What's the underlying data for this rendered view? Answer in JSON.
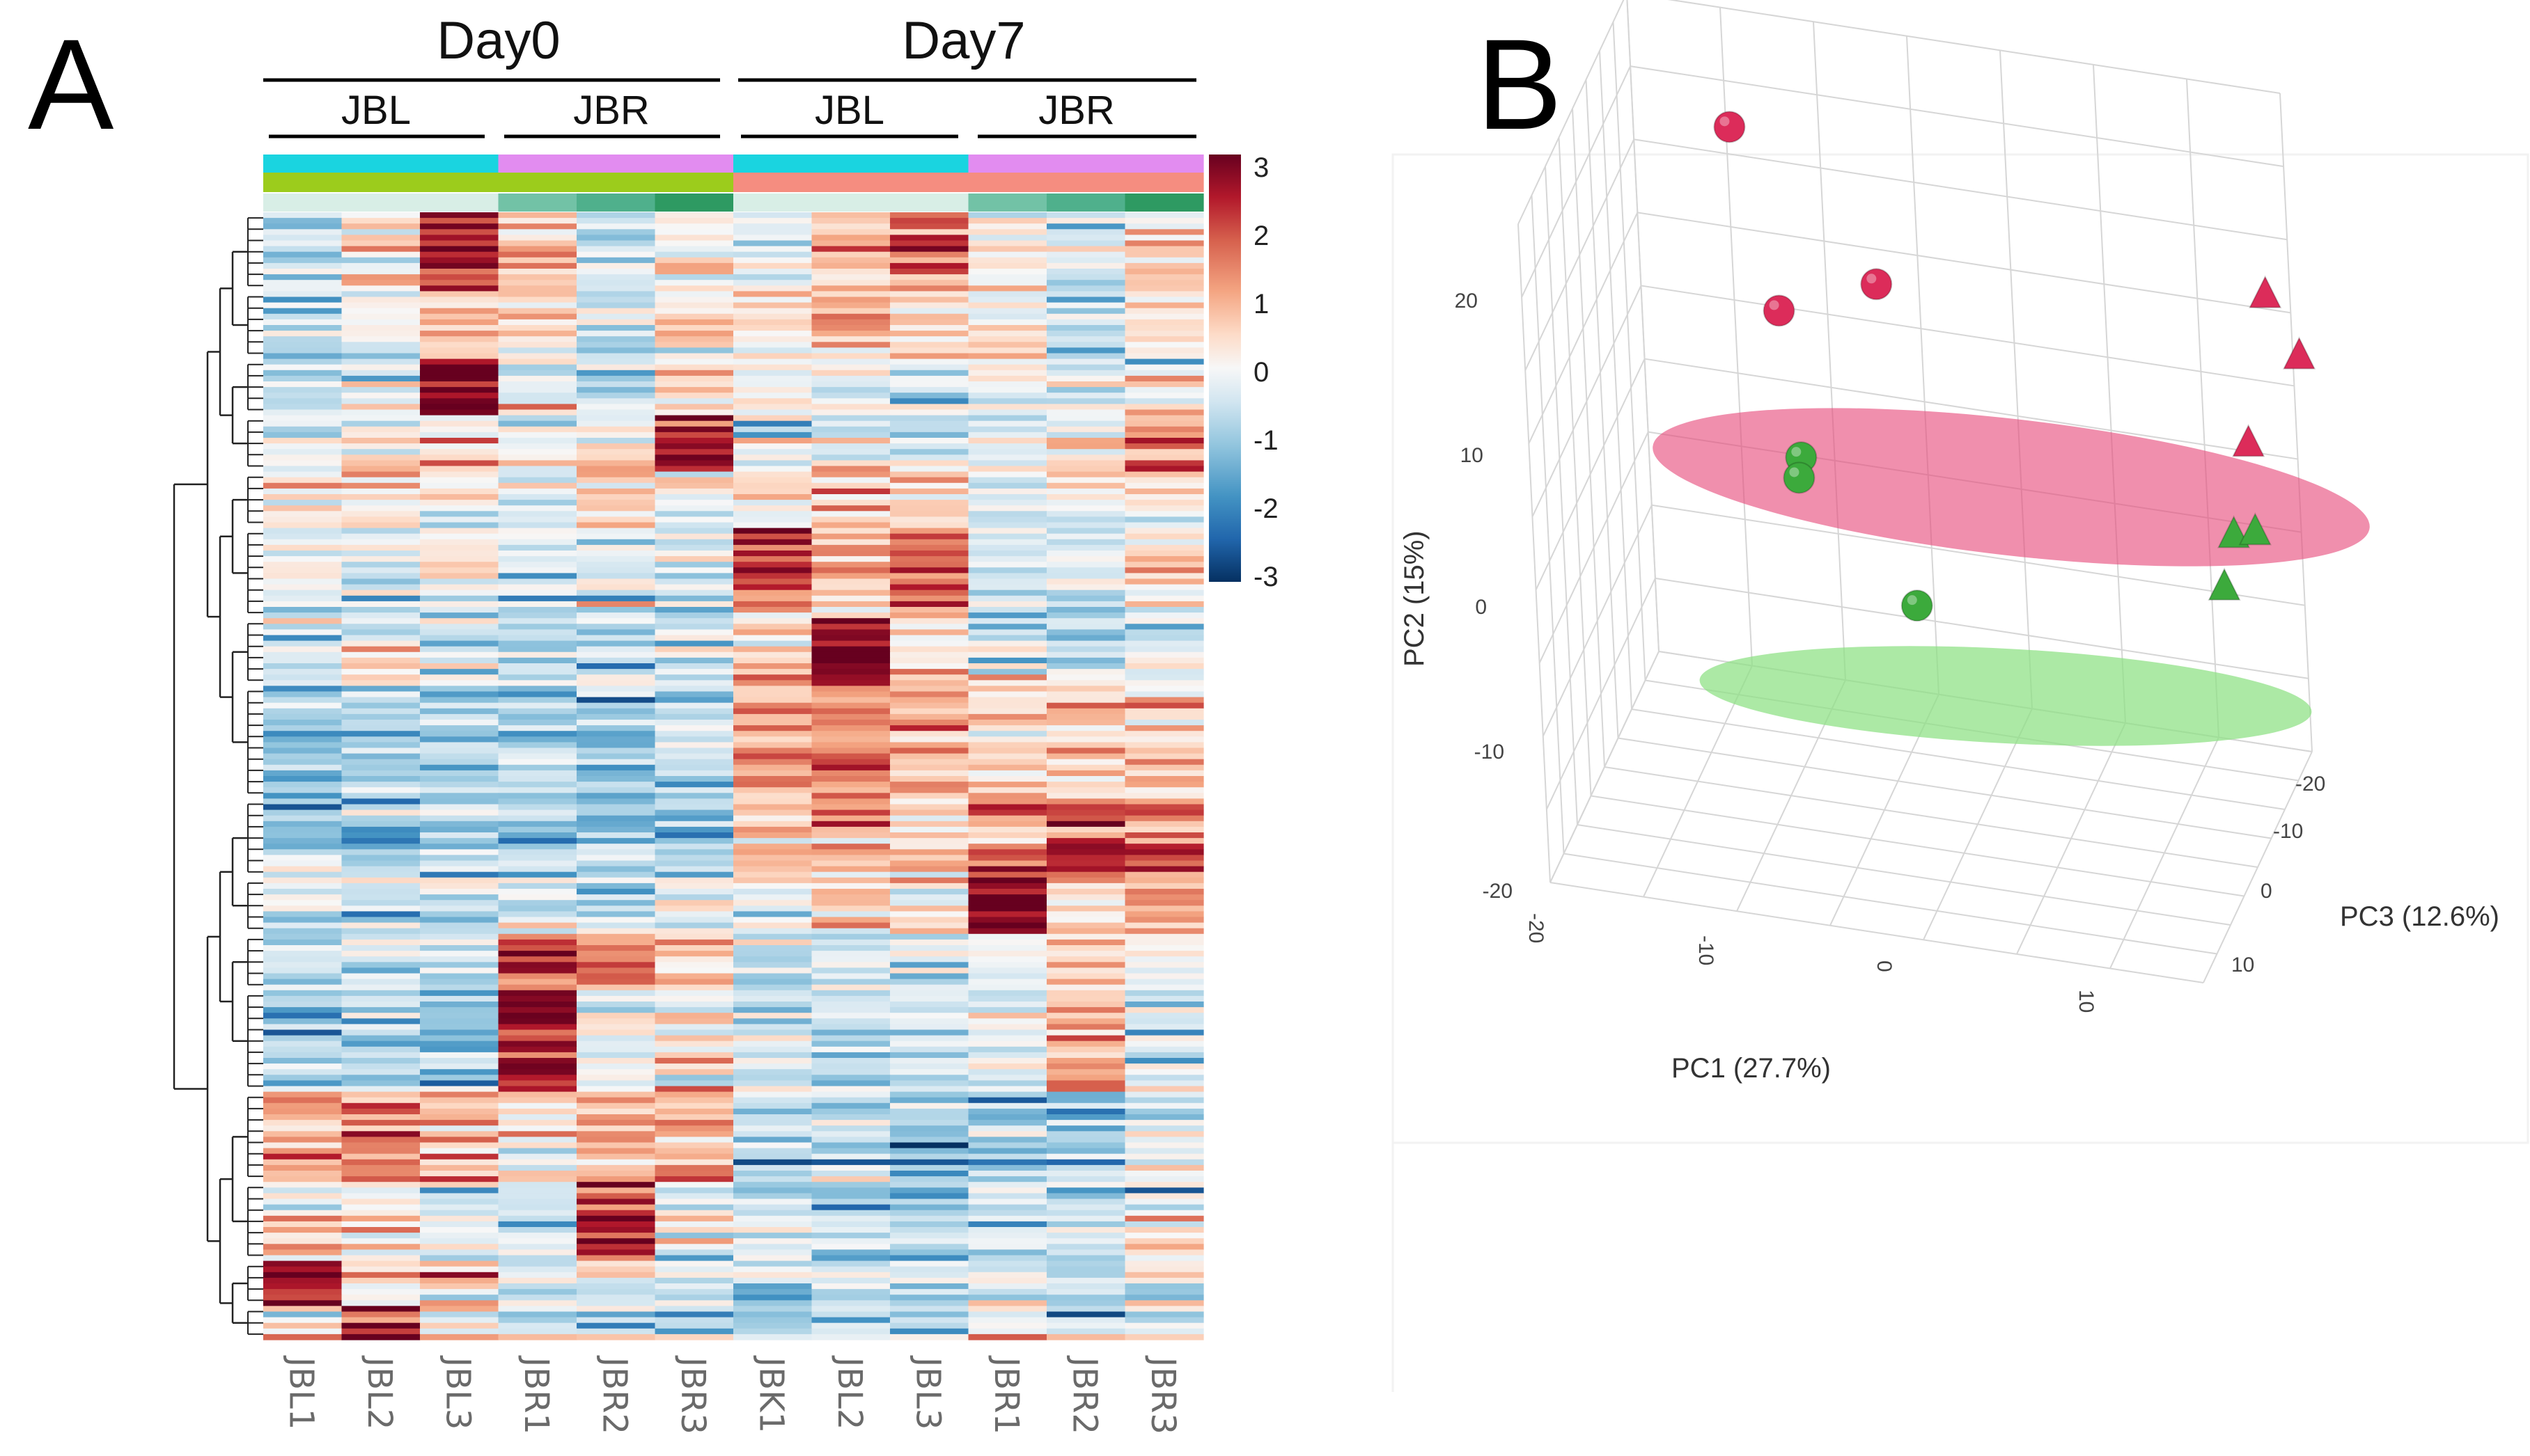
{
  "panels": {
    "a": "A",
    "b": "B"
  },
  "chart_data": [
    {
      "type": "heatmap",
      "panel": "A",
      "groups_top": [
        "Day0",
        "Day7"
      ],
      "groups_sub": [
        "JBL",
        "JBR",
        "JBL",
        "JBR"
      ],
      "columns": [
        "JBL1",
        "JBL2",
        "JBL3",
        "JBR1",
        "JBR2",
        "JBR3",
        "JBK1",
        "JBL2",
        "JBL3",
        "JBR1",
        "JBR2",
        "JBR3"
      ],
      "annotation_rows": [
        [
          "#1ad4e0",
          "#1ad4e0",
          "#1ad4e0",
          "#e28cf0",
          "#e28cf0",
          "#e28cf0",
          "#1ad4e0",
          "#1ad4e0",
          "#1ad4e0",
          "#e28cf0",
          "#e28cf0",
          "#e28cf0"
        ],
        [
          "#9ccc1c",
          "#9ccc1c",
          "#9ccc1c",
          "#9ccc1c",
          "#9ccc1c",
          "#9ccc1c",
          "#f58d80",
          "#f58d80",
          "#f58d80",
          "#f58d80",
          "#f58d80",
          "#f58d80"
        ],
        [
          "#d8eee6",
          "#d8eee6",
          "#d8eee6",
          "#72c2a6",
          "#4fb08c",
          "#2e9a62",
          "#d8eee6",
          "#d8eee6",
          "#d8eee6",
          "#72c2a6",
          "#4fb08c",
          "#2e9a62"
        ]
      ],
      "color_scale": {
        "min": -3,
        "max": 3,
        "ticks": [
          "3",
          "2",
          "1",
          "0",
          "-1",
          "-2",
          "-3"
        ],
        "colors": [
          "#053061",
          "#2166ac",
          "#4393c3",
          "#92c5de",
          "#d1e5f0",
          "#f7f7f7",
          "#fddbc7",
          "#f4a582",
          "#d6604d",
          "#b2182b",
          "#67001f"
        ]
      },
      "n_rows": 200,
      "clusters": [
        {
          "start": 0,
          "end": 14,
          "means": [
            -0.8,
            0.3,
            2.2,
            0.9,
            -0.6,
            0.2,
            -0.5,
            0.8,
            1.6,
            0.3,
            -0.3,
            0.4
          ]
        },
        {
          "start": 14,
          "end": 26,
          "means": [
            -0.8,
            -0.5,
            0.6,
            0.4,
            -0.5,
            0.3,
            0.2,
            0.9,
            0.6,
            0.5,
            -0.7,
            0.6
          ]
        },
        {
          "start": 26,
          "end": 36,
          "means": [
            -0.5,
            -0.6,
            3.0,
            -0.3,
            -0.5,
            0.3,
            -0.2,
            -0.2,
            -0.5,
            -0.2,
            -0.5,
            0.1
          ]
        },
        {
          "start": 36,
          "end": 46,
          "means": [
            -0.5,
            -0.2,
            0.2,
            -0.4,
            0.4,
            2.7,
            -0.2,
            -0.1,
            -0.5,
            -0.4,
            0.2,
            1.7
          ]
        },
        {
          "start": 46,
          "end": 56,
          "means": [
            0.3,
            0.7,
            0.0,
            -0.6,
            0.6,
            -0.3,
            0.3,
            0.9,
            0.5,
            -0.5,
            0.0,
            0.3
          ]
        },
        {
          "start": 56,
          "end": 72,
          "means": [
            -0.3,
            -0.4,
            -0.2,
            -0.5,
            -0.3,
            -0.5,
            1.9,
            0.7,
            1.6,
            -0.3,
            -0.5,
            0.3
          ]
        },
        {
          "start": 72,
          "end": 84,
          "means": [
            -0.5,
            0.3,
            -0.4,
            -0.6,
            -0.5,
            -0.6,
            0.6,
            2.8,
            0.4,
            -0.3,
            -0.5,
            -0.2
          ]
        },
        {
          "start": 84,
          "end": 104,
          "means": [
            -1.0,
            -0.9,
            -0.9,
            -0.8,
            -0.9,
            -0.7,
            1.2,
            1.5,
            1.3,
            0.9,
            0.6,
            0.7
          ]
        },
        {
          "start": 104,
          "end": 118,
          "means": [
            -1.0,
            -1.0,
            -1.0,
            -0.9,
            -1.0,
            -0.8,
            0.6,
            0.9,
            0.4,
            1.5,
            2.1,
            1.8
          ]
        },
        {
          "start": 118,
          "end": 128,
          "means": [
            -0.7,
            -0.8,
            -0.6,
            -0.5,
            -0.7,
            -0.6,
            -0.4,
            0.4,
            0.2,
            2.6,
            0.4,
            0.7
          ]
        },
        {
          "start": 128,
          "end": 138,
          "means": [
            -0.8,
            -0.6,
            -0.9,
            1.6,
            1.5,
            0.2,
            -0.6,
            -0.6,
            -0.7,
            -0.5,
            0.5,
            -0.4
          ]
        },
        {
          "start": 138,
          "end": 156,
          "means": [
            -1.0,
            -0.8,
            -0.6,
            2.6,
            0.3,
            0.2,
            -0.5,
            -0.7,
            -0.6,
            -0.4,
            1.0,
            -0.3
          ]
        },
        {
          "start": 156,
          "end": 172,
          "means": [
            0.9,
            1.4,
            1.2,
            0.1,
            0.8,
            1.1,
            -0.9,
            -0.8,
            -1.0,
            -0.9,
            -0.8,
            -0.6
          ]
        },
        {
          "start": 172,
          "end": 186,
          "means": [
            0.4,
            0.3,
            -0.4,
            -0.6,
            2.4,
            -0.5,
            -0.8,
            -0.7,
            -0.9,
            -0.6,
            -0.5,
            -0.4
          ]
        },
        {
          "start": 186,
          "end": 194,
          "means": [
            2.4,
            0.3,
            0.5,
            -0.4,
            -0.3,
            -0.5,
            -0.7,
            -0.6,
            -0.8,
            -0.6,
            -0.5,
            -0.4
          ]
        },
        {
          "start": 194,
          "end": 200,
          "means": [
            0.2,
            2.8,
            0.3,
            -0.4,
            -0.5,
            -0.6,
            -0.7,
            -0.5,
            -0.6,
            0.4,
            -0.5,
            -0.3
          ]
        }
      ]
    },
    {
      "type": "scatter",
      "panel": "B",
      "subtype": "3d-pca",
      "xlabel": "PC1 (27.7%)",
      "ylabel": "PC2 (15%)",
      "zlabel": "PC3 (12.6%)",
      "xticks": [
        "-20",
        "-10",
        "0",
        "10"
      ],
      "yticks": [
        "20",
        "10",
        "0",
        "-10",
        "-20"
      ],
      "zticks": [
        "-20",
        "-10",
        "0",
        "10"
      ],
      "groups": [
        {
          "name": "Day0 spheres (red)",
          "color": "#dc2c5a",
          "marker": "sphere",
          "points": [
            {
              "x": -14,
              "y": 19,
              "z": -15
            },
            {
              "x": -11,
              "y": 9,
              "z": -10
            },
            {
              "x": -6,
              "y": 11,
              "z": -12
            }
          ]
        },
        {
          "name": "Day7 triangles (red)",
          "color": "#dc2c5a",
          "marker": "triangle",
          "points": [
            {
              "x": 14,
              "y": 12,
              "z": -18
            },
            {
              "x": 16,
              "y": 9,
              "z": -16
            },
            {
              "x": 14,
              "y": 5,
              "z": -10
            }
          ]
        },
        {
          "name": "Day0 spheres (green)",
          "color": "#3caa3c",
          "marker": "sphere",
          "points": [
            {
              "x": -11,
              "y": -3,
              "z": -15
            },
            {
              "x": -11,
              "y": -4,
              "z": -14
            },
            {
              "x": -4,
              "y": -9,
              "z": -8
            }
          ]
        },
        {
          "name": "Day7 triangles (green)",
          "color": "#3caa3c",
          "marker": "triangle",
          "points": [
            {
              "x": 12,
              "y": -4,
              "z": -16
            },
            {
              "x": 13,
              "y": -4,
              "z": -17
            },
            {
              "x": 12,
              "y": -6,
              "z": -12
            }
          ]
        }
      ],
      "ellipses": [
        {
          "name": "red-cluster-ellipse",
          "color": "#e64b7a"
        },
        {
          "name": "green-cluster-ellipse",
          "color": "#8ce082"
        }
      ]
    }
  ]
}
